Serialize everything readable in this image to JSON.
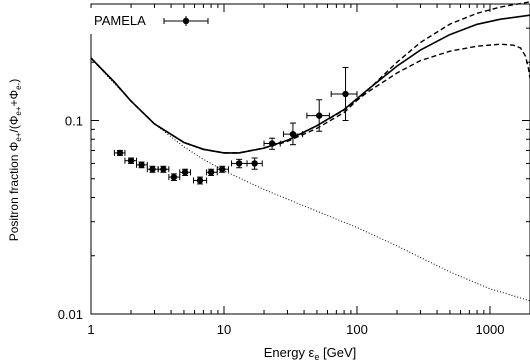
{
  "chart_data": {
    "type": "scatter",
    "xlabel": "Energy ε_e [GeV]",
    "ylabel": "Positron fraction Φe+/(Φe++Φe-)",
    "xscale": "log",
    "yscale": "log",
    "xlim": [
      1,
      2000
    ],
    "ylim": [
      0.01,
      0.4
    ],
    "x_ticks": [
      1,
      10,
      100,
      1000
    ],
    "x_tick_labels": [
      "1",
      "10",
      "100",
      "1000"
    ],
    "y_ticks": [
      0.01,
      0.1
    ],
    "y_tick_labels": [
      "0.01",
      "0.1"
    ],
    "legend": {
      "position": "top-left",
      "entries": [
        "PAMELA"
      ]
    },
    "series": [
      {
        "name": "PAMELA",
        "style": "points-with-errorbars",
        "points": [
          {
            "x": 1.65,
            "y": 0.068,
            "xerr": [
              1.5,
              1.8
            ],
            "yerr": [
              0.066,
              0.07
            ]
          },
          {
            "x": 2.0,
            "y": 0.062,
            "xerr": [
              1.8,
              2.2
            ],
            "yerr": [
              0.06,
              0.064
            ]
          },
          {
            "x": 2.4,
            "y": 0.059,
            "xerr": [
              2.2,
              2.65
            ],
            "yerr": [
              0.057,
              0.061
            ]
          },
          {
            "x": 2.9,
            "y": 0.056,
            "xerr": [
              2.65,
              3.2
            ],
            "yerr": [
              0.054,
              0.058
            ]
          },
          {
            "x": 3.5,
            "y": 0.056,
            "xerr": [
              3.2,
              3.85
            ],
            "yerr": [
              0.054,
              0.058
            ]
          },
          {
            "x": 4.2,
            "y": 0.051,
            "xerr": [
              3.85,
              4.65
            ],
            "yerr": [
              0.049,
              0.053
            ]
          },
          {
            "x": 5.1,
            "y": 0.054,
            "xerr": [
              4.65,
              5.6
            ],
            "yerr": [
              0.052,
              0.056
            ]
          },
          {
            "x": 6.6,
            "y": 0.049,
            "xerr": [
              5.9,
              7.4
            ],
            "yerr": [
              0.047,
              0.051
            ]
          },
          {
            "x": 8.0,
            "y": 0.054,
            "xerr": [
              7.4,
              8.9
            ],
            "yerr": [
              0.052,
              0.056
            ]
          },
          {
            "x": 9.7,
            "y": 0.056,
            "xerr": [
              8.9,
              10.8
            ],
            "yerr": [
              0.054,
              0.058
            ]
          },
          {
            "x": 13.0,
            "y": 0.06,
            "xerr": [
              11.4,
              14.9
            ],
            "yerr": [
              0.057,
              0.063
            ]
          },
          {
            "x": 17.0,
            "y": 0.06,
            "xerr": [
              14.9,
              19.4
            ],
            "yerr": [
              0.056,
              0.064
            ]
          },
          {
            "x": 23.0,
            "y": 0.076,
            "xerr": [
              20.0,
              26.5
            ],
            "yerr": [
              0.071,
              0.081
            ]
          },
          {
            "x": 33.0,
            "y": 0.085,
            "xerr": [
              28.0,
              39.0
            ],
            "yerr": [
              0.075,
              0.097
            ]
          },
          {
            "x": 52.0,
            "y": 0.106,
            "xerr": [
              42.0,
              62.0
            ],
            "yerr": [
              0.088,
              0.128
            ]
          },
          {
            "x": 82.0,
            "y": 0.137,
            "xerr": [
              64.0,
              100.0
            ],
            "yerr": [
              0.1,
              0.188
            ]
          }
        ]
      },
      {
        "style": "solid",
        "points": [
          [
            1,
            0.21
          ],
          [
            1.5,
            0.158
          ],
          [
            2,
            0.126
          ],
          [
            3,
            0.096
          ],
          [
            5,
            0.077
          ],
          [
            7,
            0.071
          ],
          [
            10,
            0.068
          ],
          [
            13,
            0.068
          ],
          [
            20,
            0.072
          ],
          [
            30,
            0.079
          ],
          [
            50,
            0.094
          ],
          [
            80,
            0.114
          ],
          [
            120,
            0.144
          ],
          [
            200,
            0.191
          ],
          [
            300,
            0.231
          ],
          [
            500,
            0.278
          ],
          [
            800,
            0.314
          ],
          [
            1200,
            0.334
          ],
          [
            2000,
            0.35
          ]
        ]
      },
      {
        "style": "dashed",
        "points": [
          [
            1,
            0.21
          ],
          [
            1.5,
            0.158
          ],
          [
            2,
            0.126
          ],
          [
            3,
            0.096
          ],
          [
            5,
            0.077
          ],
          [
            7,
            0.071
          ],
          [
            10,
            0.068
          ],
          [
            13,
            0.068
          ],
          [
            20,
            0.072
          ],
          [
            30,
            0.078
          ],
          [
            50,
            0.091
          ],
          [
            80,
            0.11
          ],
          [
            120,
            0.143
          ],
          [
            200,
            0.2
          ],
          [
            300,
            0.253
          ],
          [
            500,
            0.315
          ],
          [
            800,
            0.358
          ],
          [
            1200,
            0.386
          ],
          [
            2000,
            0.41
          ]
        ]
      },
      {
        "style": "dashed",
        "points": [
          [
            1,
            0.21
          ],
          [
            1.5,
            0.158
          ],
          [
            2,
            0.126
          ],
          [
            3,
            0.096
          ],
          [
            5,
            0.077
          ],
          [
            7,
            0.071
          ],
          [
            10,
            0.068
          ],
          [
            13,
            0.068
          ],
          [
            20,
            0.072
          ],
          [
            30,
            0.079
          ],
          [
            50,
            0.094
          ],
          [
            80,
            0.113
          ],
          [
            120,
            0.14
          ],
          [
            200,
            0.176
          ],
          [
            300,
            0.204
          ],
          [
            500,
            0.228
          ],
          [
            800,
            0.242
          ],
          [
            1200,
            0.248
          ],
          [
            1500,
            0.245
          ],
          [
            1700,
            0.237
          ],
          [
            1850,
            0.215
          ],
          [
            1950,
            0.185
          ],
          [
            2000,
            0.165
          ]
        ]
      },
      {
        "style": "dotted",
        "points": [
          [
            1,
            0.21
          ],
          [
            1.3,
            0.172
          ],
          [
            1.7,
            0.142
          ],
          [
            2,
            0.126
          ],
          [
            3,
            0.096
          ],
          [
            5,
            0.073
          ],
          [
            7,
            0.063
          ],
          [
            10,
            0.055
          ],
          [
            20,
            0.044
          ],
          [
            50,
            0.034
          ],
          [
            100,
            0.028
          ],
          [
            200,
            0.0225
          ],
          [
            500,
            0.0165
          ],
          [
            1000,
            0.0135
          ],
          [
            2000,
            0.0117
          ]
        ]
      }
    ]
  }
}
